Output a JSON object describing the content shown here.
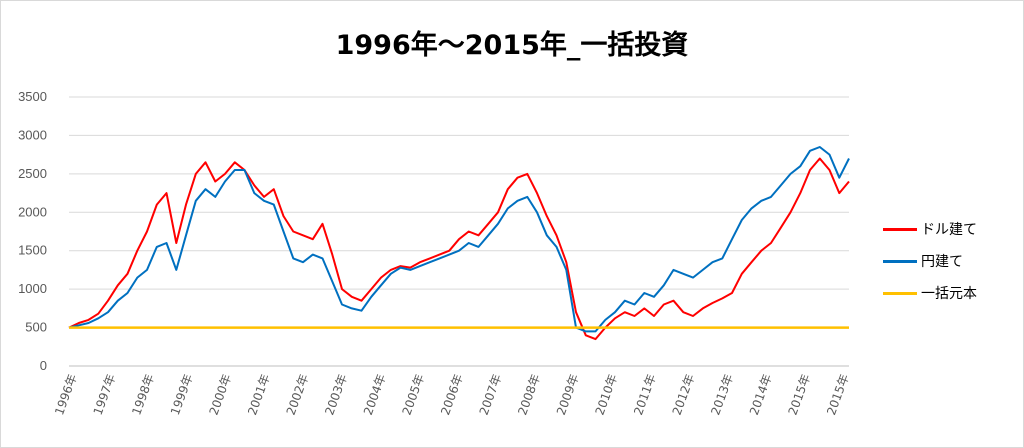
{
  "chart_data": {
    "type": "line",
    "title": "1996年～2015年_一括投資",
    "xlabel": "",
    "ylabel": "",
    "ylim": [
      0,
      3500
    ],
    "yticks": [
      0,
      500,
      1000,
      1500,
      2000,
      2500,
      3000,
      3500
    ],
    "grid": true,
    "legend_position": "right",
    "x_tick_labels": [
      "1996年",
      "1997年",
      "1998年",
      "1999年",
      "2000年",
      "2001年",
      "2002年",
      "2003年",
      "2004年",
      "2005年",
      "2006年",
      "2007年",
      "2008年",
      "2009年",
      "2010年",
      "2011年",
      "2012年",
      "2013年",
      "2014年",
      "2015年",
      "2015年"
    ],
    "x": [
      1996.0,
      1996.25,
      1996.5,
      1996.75,
      1997.0,
      1997.25,
      1997.5,
      1997.75,
      1998.0,
      1998.25,
      1998.5,
      1998.75,
      1999.0,
      1999.25,
      1999.5,
      1999.75,
      2000.0,
      2000.25,
      2000.5,
      2000.75,
      2001.0,
      2001.25,
      2001.5,
      2001.75,
      2002.0,
      2002.25,
      2002.5,
      2002.75,
      2003.0,
      2003.25,
      2003.5,
      2003.75,
      2004.0,
      2004.25,
      2004.5,
      2004.75,
      2005.0,
      2005.25,
      2005.5,
      2005.75,
      2006.0,
      2006.25,
      2006.5,
      2006.75,
      2007.0,
      2007.25,
      2007.5,
      2007.75,
      2008.0,
      2008.25,
      2008.5,
      2008.75,
      2009.0,
      2009.25,
      2009.5,
      2009.75,
      2010.0,
      2010.25,
      2010.5,
      2010.75,
      2011.0,
      2011.25,
      2011.5,
      2011.75,
      2012.0,
      2012.25,
      2012.5,
      2012.75,
      2013.0,
      2013.25,
      2013.5,
      2013.75,
      2014.0,
      2014.25,
      2014.5,
      2014.75,
      2015.0,
      2015.25,
      2015.5,
      2015.75,
      2016.0
    ],
    "series": [
      {
        "name": "ドル建て",
        "color": "#ff0000",
        "values": [
          500,
          560,
          600,
          680,
          850,
          1050,
          1200,
          1500,
          1750,
          2100,
          2250,
          1600,
          2100,
          2500,
          2650,
          2400,
          2500,
          2650,
          2550,
          2350,
          2200,
          2300,
          1950,
          1750,
          1700,
          1650,
          1850,
          1450,
          1000,
          900,
          850,
          1000,
          1150,
          1250,
          1300,
          1280,
          1350,
          1400,
          1450,
          1500,
          1650,
          1750,
          1700,
          1850,
          2000,
          2300,
          2450,
          2500,
          2250,
          1950,
          1700,
          1350,
          700,
          400,
          350,
          500,
          620,
          700,
          650,
          750,
          650,
          800,
          850,
          700,
          650,
          750,
          820,
          880,
          950,
          1200,
          1350,
          1500,
          1600,
          1800,
          2000,
          2250,
          2550,
          2700,
          2550,
          2250,
          2400
        ]
      },
      {
        "name": "円建て",
        "color": "#0070c0",
        "values": [
          500,
          530,
          560,
          620,
          700,
          850,
          950,
          1150,
          1250,
          1550,
          1600,
          1250,
          1700,
          2150,
          2300,
          2200,
          2400,
          2550,
          2550,
          2250,
          2150,
          2100,
          1750,
          1400,
          1350,
          1450,
          1400,
          1100,
          800,
          750,
          720,
          900,
          1050,
          1200,
          1280,
          1250,
          1300,
          1350,
          1400,
          1450,
          1500,
          1600,
          1550,
          1700,
          1850,
          2050,
          2150,
          2200,
          2000,
          1700,
          1550,
          1250,
          500,
          450,
          450,
          600,
          700,
          850,
          800,
          950,
          900,
          1050,
          1250,
          1200,
          1150,
          1250,
          1350,
          1400,
          1650,
          1900,
          2050,
          2150,
          2200,
          2350,
          2500,
          2600,
          2800,
          2850,
          2750,
          2450,
          2700
        ]
      },
      {
        "name": "一括元本",
        "color": "#ffc000",
        "values": [
          500,
          500,
          500,
          500,
          500,
          500,
          500,
          500,
          500,
          500,
          500,
          500,
          500,
          500,
          500,
          500,
          500,
          500,
          500,
          500,
          500,
          500,
          500,
          500,
          500,
          500,
          500,
          500,
          500,
          500,
          500,
          500,
          500,
          500,
          500,
          500,
          500,
          500,
          500,
          500,
          500,
          500,
          500,
          500,
          500,
          500,
          500,
          500,
          500,
          500,
          500,
          500,
          500,
          500,
          500,
          500,
          500,
          500,
          500,
          500,
          500,
          500,
          500,
          500,
          500,
          500,
          500,
          500,
          500,
          500,
          500,
          500,
          500,
          500,
          500,
          500,
          500,
          500,
          500,
          500,
          500
        ]
      }
    ]
  }
}
